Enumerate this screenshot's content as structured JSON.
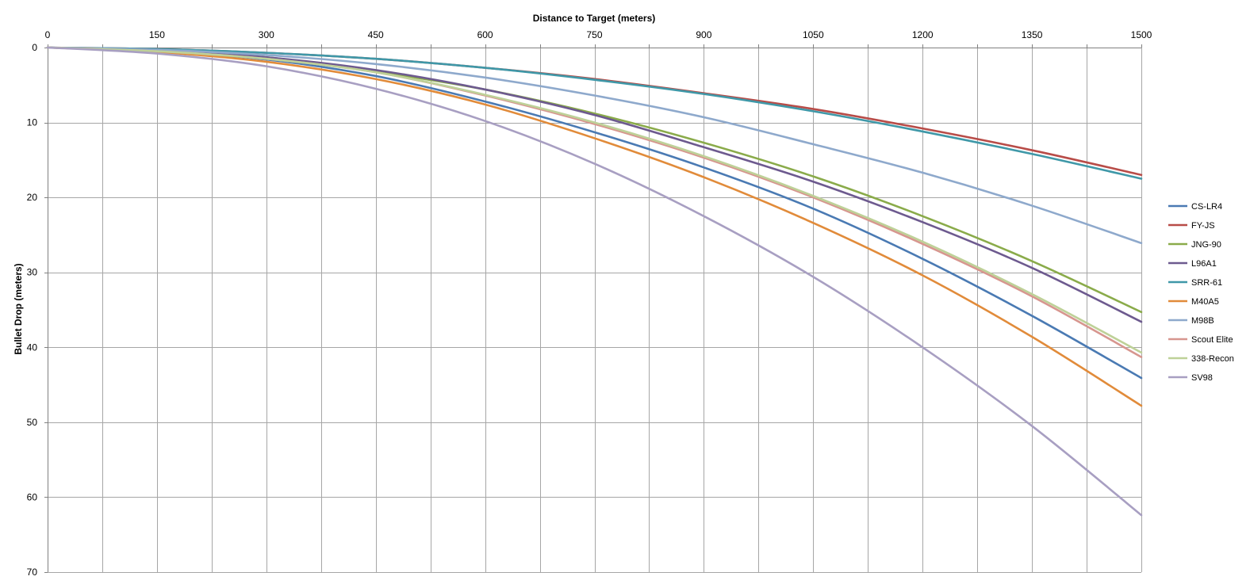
{
  "chart_data": {
    "type": "line",
    "title": "",
    "xlabel": "Distance to Target (meters)",
    "ylabel": "Bullet Drop (meters)",
    "x_axis_position": "top",
    "y_axis_inverted": true,
    "grid": true,
    "legend_position": "right",
    "xlim": [
      0,
      1500
    ],
    "ylim": [
      0,
      70
    ],
    "x_ticks": [
      "0",
      "150",
      "300",
      "450",
      "600",
      "750",
      "900",
      "1050",
      "1200",
      "1350",
      "1500"
    ],
    "y_ticks": [
      "0",
      "10",
      "20",
      "30",
      "40",
      "50",
      "60",
      "70"
    ],
    "x": [
      0,
      150,
      300,
      450,
      600,
      750,
      900,
      1050,
      1200,
      1350,
      1500
    ],
    "series": [
      {
        "name": "CS-LR4",
        "color": "#4a7ab3",
        "values": [
          0,
          0.5,
          1.6,
          3.8,
          7.2,
          11.3,
          16.0,
          21.5,
          28.2,
          35.8,
          44.1
        ]
      },
      {
        "name": "FY-JS",
        "color": "#b84c48",
        "values": [
          0,
          0.2,
          0.7,
          1.5,
          2.7,
          4.2,
          6.1,
          8.2,
          10.8,
          13.7,
          17.0
        ]
      },
      {
        "name": "JNG-90",
        "color": "#8aab4a",
        "values": [
          0,
          0.4,
          1.3,
          3.2,
          5.6,
          8.8,
          12.7,
          17.2,
          22.5,
          28.5,
          35.3
        ]
      },
      {
        "name": "L96A1",
        "color": "#6d5a8f",
        "values": [
          0,
          0.4,
          1.3,
          3.0,
          5.6,
          9.0,
          13.3,
          17.9,
          23.3,
          29.4,
          36.6
        ]
      },
      {
        "name": "SRR-61",
        "color": "#3f98a8",
        "values": [
          0,
          0.2,
          0.7,
          1.5,
          2.7,
          4.3,
          6.2,
          8.5,
          11.2,
          14.2,
          17.5
        ]
      },
      {
        "name": "M40A5",
        "color": "#e18b3a",
        "values": [
          0,
          0.6,
          1.9,
          4.2,
          7.6,
          12.1,
          17.3,
          23.4,
          30.4,
          38.6,
          47.8
        ]
      },
      {
        "name": "M98B",
        "color": "#8ea9cc",
        "values": [
          0,
          0.3,
          1.0,
          2.2,
          4.0,
          6.4,
          9.3,
          12.9,
          16.7,
          21.1,
          26.1
        ]
      },
      {
        "name": "Scout Elite",
        "color": "#d7968f",
        "values": [
          0,
          0.5,
          1.5,
          3.3,
          6.4,
          10.2,
          14.7,
          20.0,
          26.2,
          33.2,
          41.3
        ]
      },
      {
        "name": "338-Recon",
        "color": "#bed198",
        "values": [
          0,
          0.5,
          1.5,
          3.3,
          6.3,
          10.0,
          14.5,
          19.8,
          25.9,
          32.9,
          40.7
        ]
      },
      {
        "name": "SV98",
        "color": "#a89fc2",
        "values": [
          0,
          0.8,
          2.5,
          5.5,
          9.8,
          15.5,
          22.5,
          30.6,
          40.0,
          50.5,
          62.4
        ]
      }
    ]
  }
}
